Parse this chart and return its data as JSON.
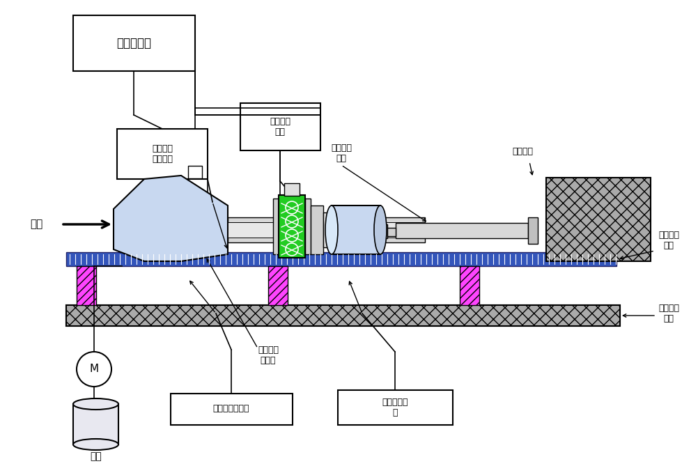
{
  "labels": {
    "static_sensor": "静电传感器",
    "combustion_fault": "若干燃烧\n故障模拟",
    "friction_control": "碰摩激振\n控制",
    "nozzle_extension": "尾喷管延\n长管",
    "exhaust_cooling": "尾气冷却",
    "engine_test_platform": "发动机试\n车台",
    "baseline_platform": "基准安装\n平台",
    "small_turbojet": "小型涡喷\n发动机",
    "engine_control": "发动机控制系统",
    "motor_speed_control": "电机转速控\n制",
    "fuel": "燃油",
    "air": "空气",
    "motor_label": "M"
  },
  "colors": {
    "white": "#ffffff",
    "black": "#000000",
    "engine_fill": "#c8d8f0",
    "blue_rail": "#4466cc",
    "magenta": "#ff44ff",
    "gray_platform": "#aaaaaa",
    "gray_block": "#999999",
    "green": "#00cc00",
    "light_gray": "#d0d0d0",
    "hatch_gray": "#bbbbbb"
  }
}
